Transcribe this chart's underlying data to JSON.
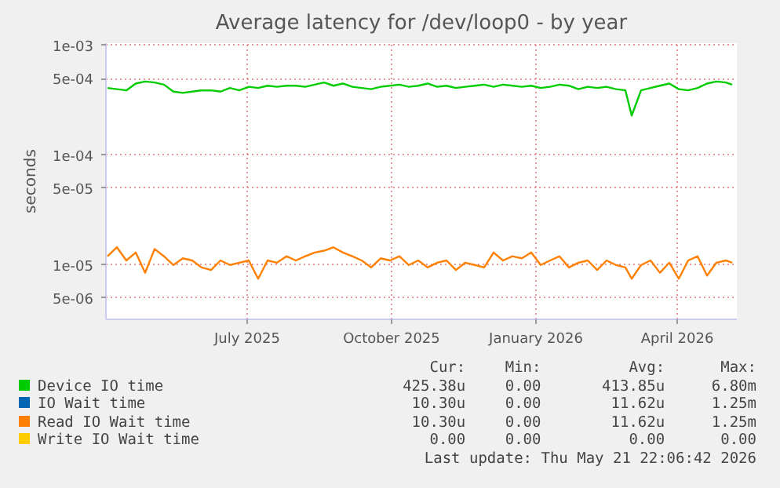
{
  "chart_data": {
    "type": "line",
    "title": "Average latency for /dev/loop0 - by year",
    "ylabel": "seconds",
    "log": true,
    "grid": true,
    "legend": "bottom",
    "x": [
      "2025-04-03",
      "2025-04-09",
      "2025-04-15",
      "2025-04-21",
      "2025-04-27",
      "2025-05-03",
      "2025-05-09",
      "2025-05-15",
      "2025-05-21",
      "2025-05-27",
      "2025-06-02",
      "2025-06-08",
      "2025-06-14",
      "2025-06-20",
      "2025-06-26",
      "2025-07-02",
      "2025-07-08",
      "2025-07-14",
      "2025-07-20",
      "2025-07-26",
      "2025-08-01",
      "2025-08-07",
      "2025-08-13",
      "2025-08-19",
      "2025-08-25",
      "2025-08-31",
      "2025-09-06",
      "2025-09-12",
      "2025-09-18",
      "2025-09-24",
      "2025-09-30",
      "2025-10-06",
      "2025-10-12",
      "2025-10-18",
      "2025-10-24",
      "2025-10-30",
      "2025-11-05",
      "2025-11-11",
      "2025-11-17",
      "2025-11-23",
      "2025-11-29",
      "2025-12-05",
      "2025-12-11",
      "2025-12-17",
      "2025-12-23",
      "2025-12-29",
      "2026-01-04",
      "2026-01-10",
      "2026-01-16",
      "2026-01-22",
      "2026-01-28",
      "2026-02-03",
      "2026-02-09",
      "2026-02-15",
      "2026-02-21",
      "2026-02-27",
      "2026-03-03",
      "2026-03-09",
      "2026-03-15",
      "2026-03-21",
      "2026-03-27",
      "2026-04-02",
      "2026-04-08",
      "2026-04-14",
      "2026-04-20",
      "2026-04-26",
      "2026-05-02",
      "2026-05-06"
    ],
    "xlim": [
      "2025-04-02",
      "2026-05-09"
    ],
    "xticks": [
      {
        "value": "2025-07-01",
        "label": "July 2025"
      },
      {
        "value": "2025-10-01",
        "label": "October 2025"
      },
      {
        "value": "2026-01-01",
        "label": "January 2026"
      },
      {
        "value": "2026-04-01",
        "label": "April 2026"
      }
    ],
    "ylim": [
      3.2e-06,
      0.00105
    ],
    "yticks": [
      {
        "value": 0.001,
        "label": "1e-03"
      },
      {
        "value": 0.0005,
        "label": "5e-04"
      },
      {
        "value": 0.0001,
        "label": "1e-04"
      },
      {
        "value": 5e-05,
        "label": "5e-05"
      },
      {
        "value": 1e-05,
        "label": "1e-05"
      },
      {
        "value": 5e-06,
        "label": "5e-06"
      }
    ],
    "series": [
      {
        "name": "Device IO time",
        "color": "#00cc00",
        "values": [
          0.00041,
          0.0004,
          0.00039,
          0.00045,
          0.00047,
          0.00046,
          0.00044,
          0.00038,
          0.00037,
          0.00038,
          0.00039,
          0.00039,
          0.00038,
          0.00041,
          0.00039,
          0.00042,
          0.00041,
          0.00043,
          0.00042,
          0.00043,
          0.00043,
          0.00042,
          0.00044,
          0.00046,
          0.00043,
          0.00045,
          0.00042,
          0.00041,
          0.0004,
          0.00042,
          0.00043,
          0.00044,
          0.00042,
          0.00043,
          0.00045,
          0.00042,
          0.00043,
          0.00041,
          0.00042,
          0.00043,
          0.00044,
          0.00042,
          0.00044,
          0.00043,
          0.00042,
          0.00043,
          0.00041,
          0.00042,
          0.00044,
          0.00043,
          0.0004,
          0.00042,
          0.00041,
          0.00042,
          0.0004,
          0.00039,
          0.00023,
          0.00039,
          0.00041,
          0.00043,
          0.00045,
          0.0004,
          0.00039,
          0.00041,
          0.00045,
          0.00047,
          0.00046,
          0.00044
        ]
      },
      {
        "name": "IO Wait time",
        "color": "#0066b3",
        "values": [
          null,
          null,
          null,
          null,
          null,
          null,
          null,
          null,
          null,
          null,
          null,
          null,
          null,
          null,
          null,
          null,
          null,
          null,
          null,
          null,
          null,
          null,
          null,
          null,
          null,
          null,
          null,
          null,
          null,
          null,
          null,
          null,
          null,
          null,
          null,
          null,
          null,
          null,
          null,
          null,
          null,
          null,
          null,
          null,
          null,
          null,
          null,
          null,
          null,
          null,
          null,
          null,
          null,
          null,
          null,
          null,
          null,
          null,
          null,
          null,
          null,
          null,
          null,
          null,
          null,
          null,
          null,
          null
        ]
      },
      {
        "name": "Read IO Wait time",
        "color": "#ff8000",
        "values": [
          1.2e-05,
          1.45e-05,
          1.1e-05,
          1.3e-05,
          8.5e-06,
          1.4e-05,
          1.2e-05,
          1e-05,
          1.15e-05,
          1.1e-05,
          9.5e-06,
          9e-06,
          1.1e-05,
          1e-05,
          1.05e-05,
          1.1e-05,
          7.5e-06,
          1.1e-05,
          1.05e-05,
          1.2e-05,
          1.1e-05,
          1.2e-05,
          1.3e-05,
          1.35e-05,
          1.45e-05,
          1.3e-05,
          1.2e-05,
          1.1e-05,
          9.5e-06,
          1.15e-05,
          1.1e-05,
          1.2e-05,
          1e-05,
          1.1e-05,
          9.5e-06,
          1.05e-05,
          1.1e-05,
          9e-06,
          1.05e-05,
          1e-05,
          9.5e-06,
          1.3e-05,
          1.1e-05,
          1.2e-05,
          1.15e-05,
          1.3e-05,
          1e-05,
          1.1e-05,
          1.2e-05,
          9.5e-06,
          1.05e-05,
          1.1e-05,
          9e-06,
          1.1e-05,
          1e-05,
          9.5e-06,
          7.5e-06,
          1e-05,
          1.1e-05,
          8.5e-06,
          1.05e-05,
          7.5e-06,
          1.1e-05,
          1.2e-05,
          8e-06,
          1.05e-05,
          1.1e-05,
          1.05e-05
        ]
      },
      {
        "name": "Write IO Wait time",
        "color": "#ffcc00",
        "values": [
          null,
          null,
          null,
          null,
          null,
          null,
          null,
          null,
          null,
          null,
          null,
          null,
          null,
          null,
          null,
          null,
          null,
          null,
          null,
          null,
          null,
          null,
          null,
          null,
          null,
          null,
          null,
          null,
          null,
          null,
          null,
          null,
          null,
          null,
          null,
          null,
          null,
          null,
          null,
          null,
          null,
          null,
          null,
          null,
          null,
          null,
          null,
          null,
          null,
          null,
          null,
          null,
          null,
          null,
          null,
          null,
          null,
          null,
          null,
          null,
          null,
          null,
          null,
          null,
          null,
          null,
          null,
          null
        ]
      }
    ],
    "annotations": [
      "Cur:",
      "Min:",
      "Avg:",
      "Max:",
      "425.38u",
      "0.00",
      "413.85u",
      "6.80m",
      "10.30u",
      "0.00",
      "11.62u",
      "1.25m",
      "10.30u",
      "0.00",
      "11.62u",
      "1.25m",
      "0.00",
      "0.00",
      "0.00",
      "0.00",
      "Last update: Thu May 21 22:06:42 2026"
    ]
  }
}
